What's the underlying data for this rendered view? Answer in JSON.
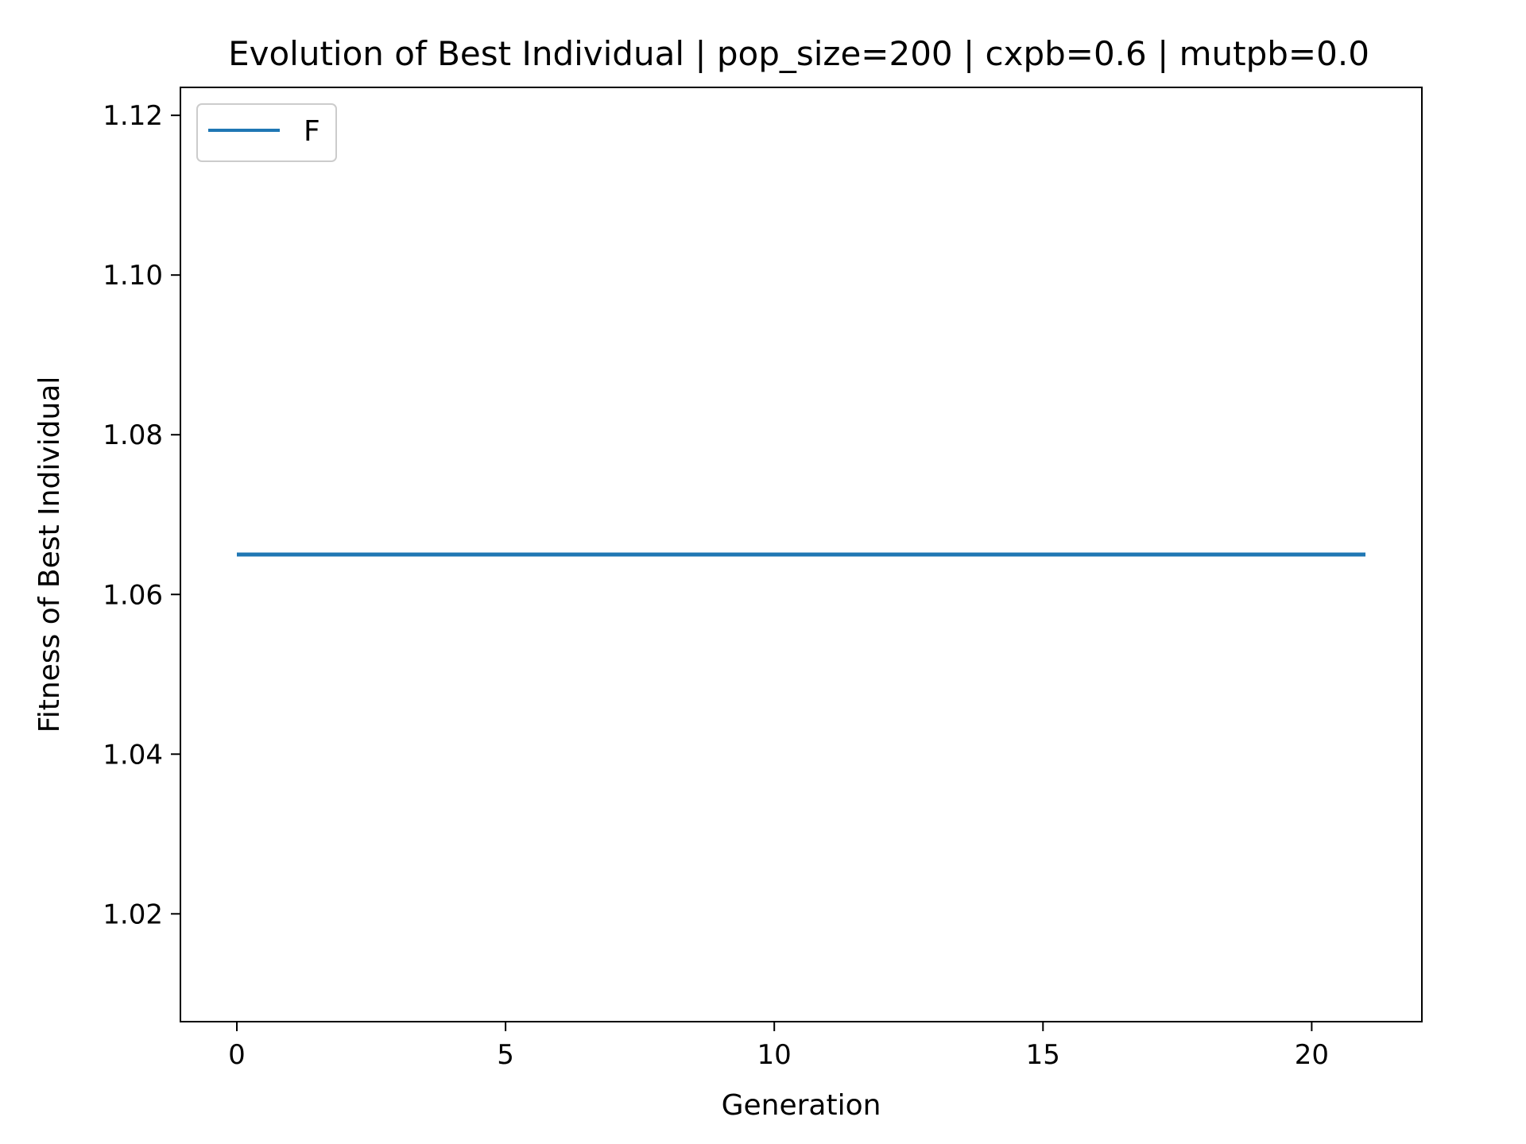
{
  "chart_data": {
    "type": "line",
    "title": "Evolution of Best Individual | pop_size=200 | cxpb=0.6 | mutpb=0.0",
    "xlabel": "Generation",
    "ylabel": "Fitness of Best Individual",
    "xlim": [
      -1.05,
      22.05
    ],
    "ylim": [
      1.0065,
      1.1235
    ],
    "xticks": [
      0,
      5,
      10,
      15,
      20
    ],
    "xtick_labels": [
      "0",
      "5",
      "10",
      "15",
      "20"
    ],
    "yticks": [
      1.02,
      1.04,
      1.06,
      1.08,
      1.1,
      1.12
    ],
    "ytick_labels": [
      "1.02",
      "1.04",
      "1.06",
      "1.08",
      "1.10",
      "1.12"
    ],
    "grid": false,
    "legend": {
      "placement": "upper-left"
    },
    "series": [
      {
        "name": "F",
        "color": "#1f77b4",
        "x": [
          0,
          1,
          2,
          3,
          4,
          5,
          6,
          7,
          8,
          9,
          10,
          11,
          12,
          13,
          14,
          15,
          16,
          17,
          18,
          19,
          20,
          21
        ],
        "y": [
          1.065,
          1.065,
          1.065,
          1.065,
          1.065,
          1.065,
          1.065,
          1.065,
          1.065,
          1.065,
          1.065,
          1.065,
          1.065,
          1.065,
          1.065,
          1.065,
          1.065,
          1.065,
          1.065,
          1.065,
          1.065,
          1.065
        ]
      }
    ]
  }
}
